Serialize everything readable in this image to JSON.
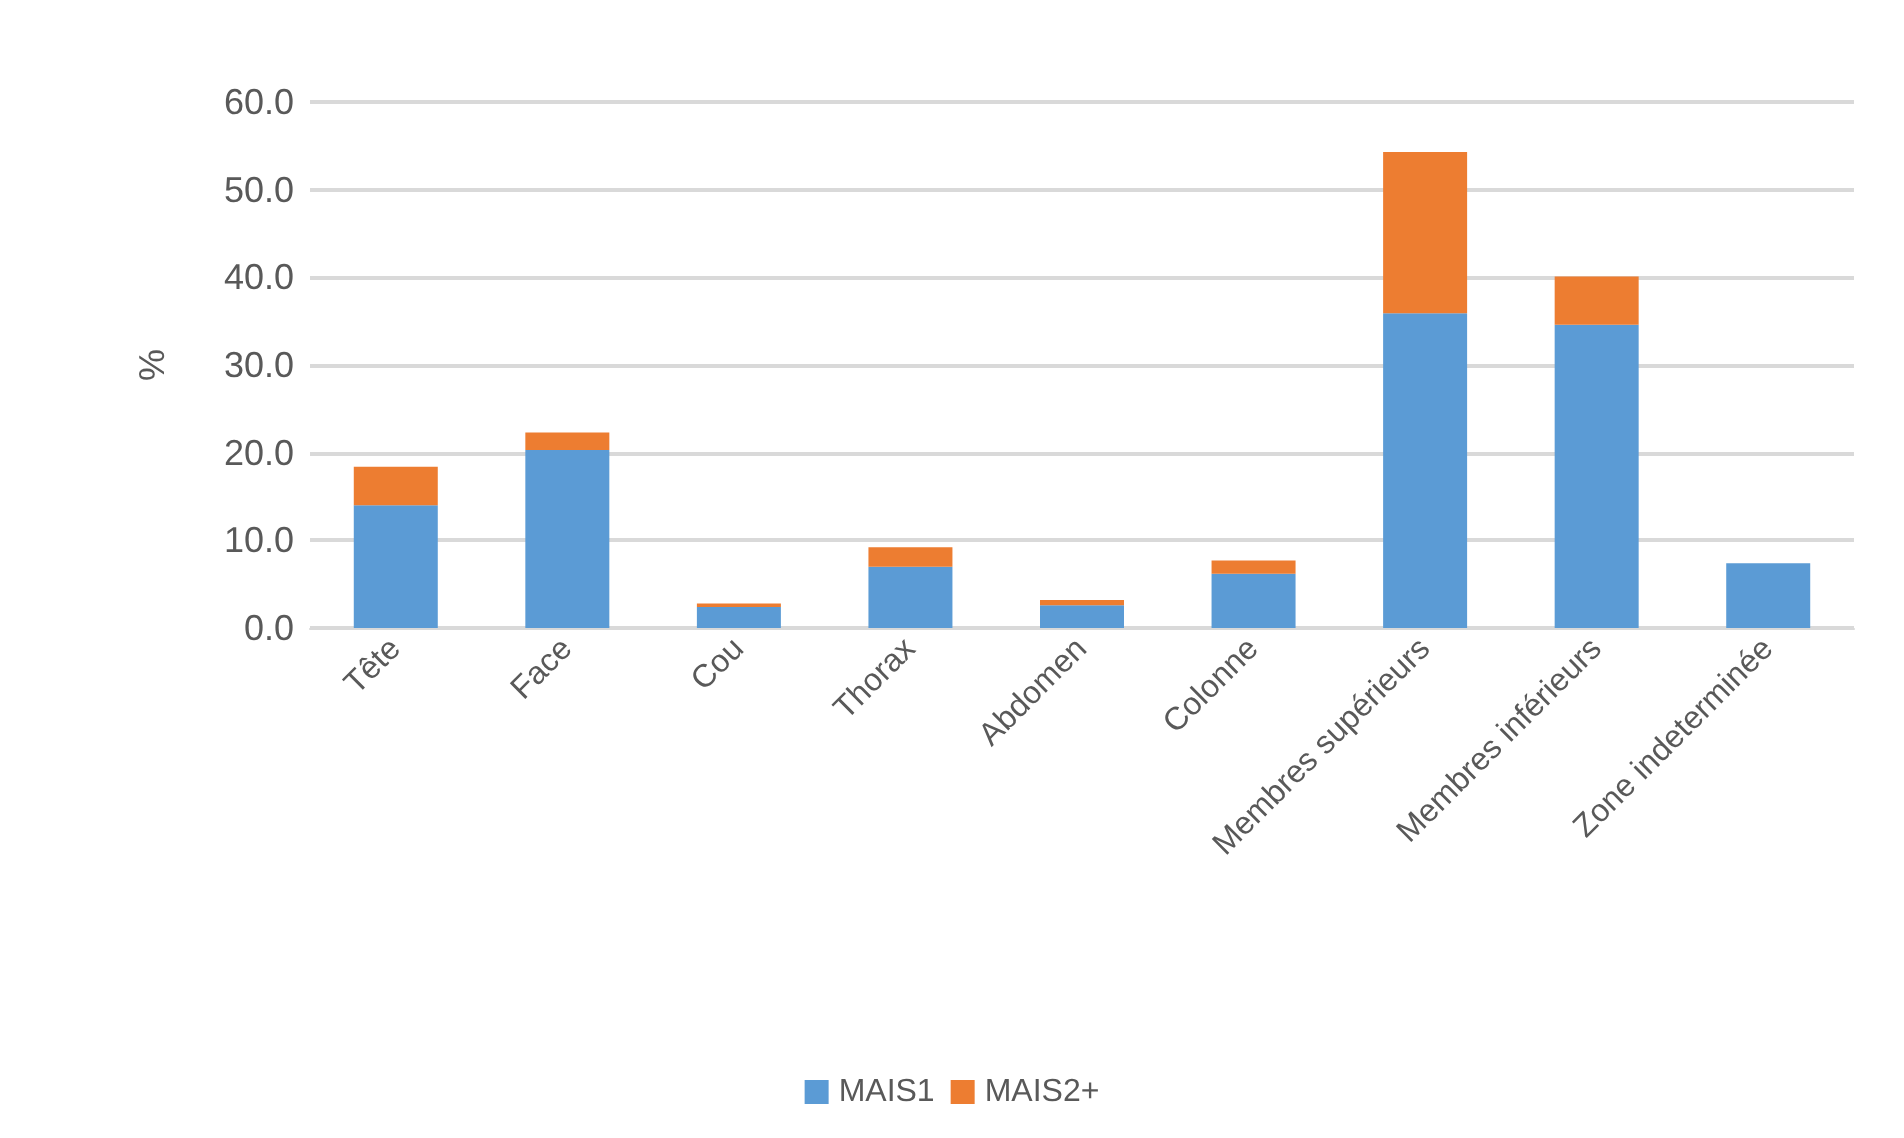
{
  "chart_data": {
    "type": "bar",
    "stacked": true,
    "ylabel": "%",
    "categories": [
      "Tête",
      "Face",
      "Cou",
      "Thorax",
      "Abdomen",
      "Colonne",
      "Membres supérieurs",
      "Membres inférieurs",
      "Zone indeterminée"
    ],
    "series": [
      {
        "name": "MAIS1",
        "color": "#5b9bd5",
        "values": [
          14.0,
          20.3,
          2.4,
          7.0,
          2.6,
          6.2,
          35.9,
          34.6,
          7.4
        ]
      },
      {
        "name": "MAIS2+",
        "color": "#ed7d31",
        "values": [
          4.4,
          2.0,
          0.4,
          2.2,
          0.6,
          1.5,
          18.4,
          5.5,
          0
        ]
      }
    ],
    "ylim": [
      0,
      60
    ],
    "yticks": [
      {
        "value": 0,
        "label": "0.0"
      },
      {
        "value": 10,
        "label": "10.0"
      },
      {
        "value": 20,
        "label": "20.0"
      },
      {
        "value": 30,
        "label": "30.0"
      },
      {
        "value": 40,
        "label": "40.0"
      },
      {
        "value": 50,
        "label": "50.0"
      },
      {
        "value": 60,
        "label": "60.0"
      }
    ],
    "grid": "y",
    "legend": "bottom"
  }
}
